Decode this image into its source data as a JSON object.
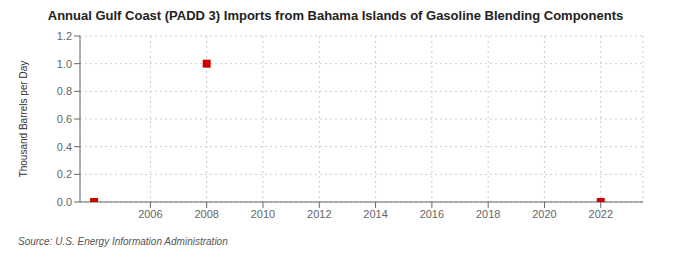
{
  "chart_data": {
    "type": "scatter",
    "title": "Annual Gulf Coast (PADD 3) Imports from Bahama Islands of Gasoline Blending Components",
    "y_label": "Thousand Barrels per Day",
    "annotation": "Source: U.S. Energy Information Administration",
    "x": [
      2004,
      2008,
      2022
    ],
    "values": [
      0,
      1,
      0
    ],
    "color": "#cc0000",
    "marker": "square",
    "xlim": [
      2003.5,
      2023.5
    ],
    "xticks": [
      2006,
      2008,
      2010,
      2012,
      2014,
      2016,
      2018,
      2020,
      2022
    ],
    "ylim": [
      0,
      1.2
    ],
    "yticks": [
      {
        "value": 0,
        "label": "0.0"
      },
      0.2,
      0.4,
      0.6,
      0.8,
      {
        "value": 1,
        "label": "1.0"
      },
      1.2
    ],
    "grid": true
  }
}
